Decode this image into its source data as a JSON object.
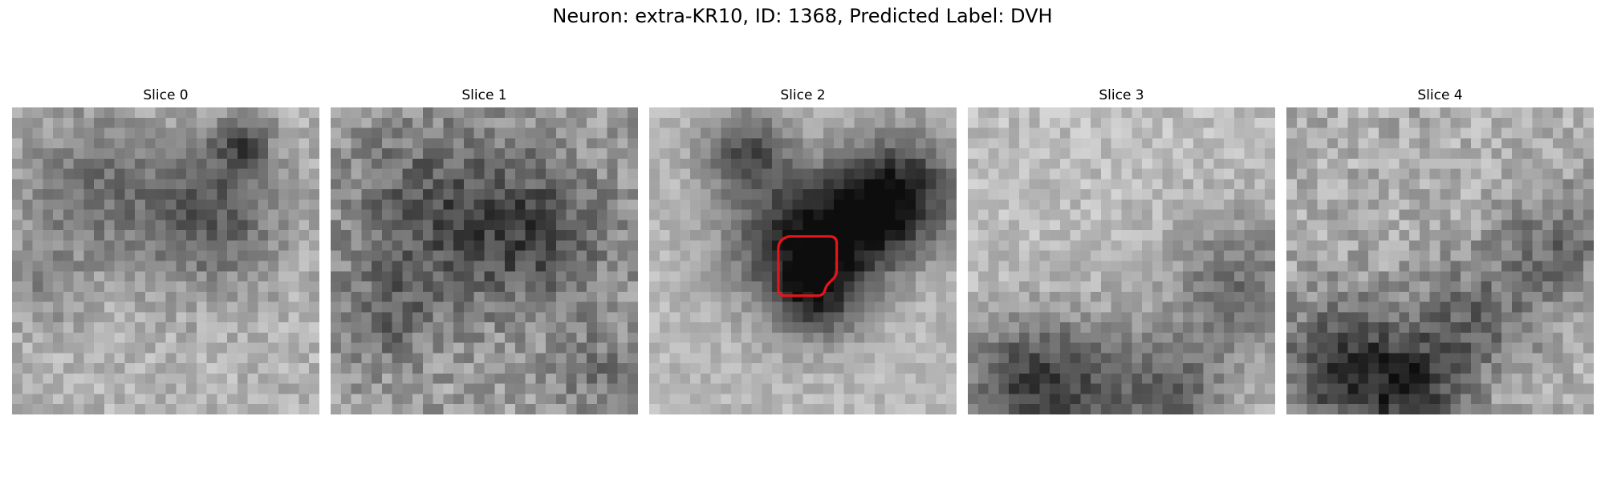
{
  "figure": {
    "title": "Neuron: extra-KR10, ID: 1368, Predicted Label: DVH"
  },
  "panels": [
    {
      "title": "Slice 0",
      "icon": "grayscale-microscopy-slice",
      "has_contour": false
    },
    {
      "title": "Slice 1",
      "icon": "grayscale-microscopy-slice",
      "has_contour": false
    },
    {
      "title": "Slice 2",
      "icon": "grayscale-microscopy-slice",
      "has_contour": true
    },
    {
      "title": "Slice 3",
      "icon": "grayscale-microscopy-slice",
      "has_contour": false
    },
    {
      "title": "Slice 4",
      "icon": "grayscale-microscopy-slice",
      "has_contour": false
    }
  ],
  "colors": {
    "contour": "#e8141c",
    "background": "#ffffff"
  }
}
